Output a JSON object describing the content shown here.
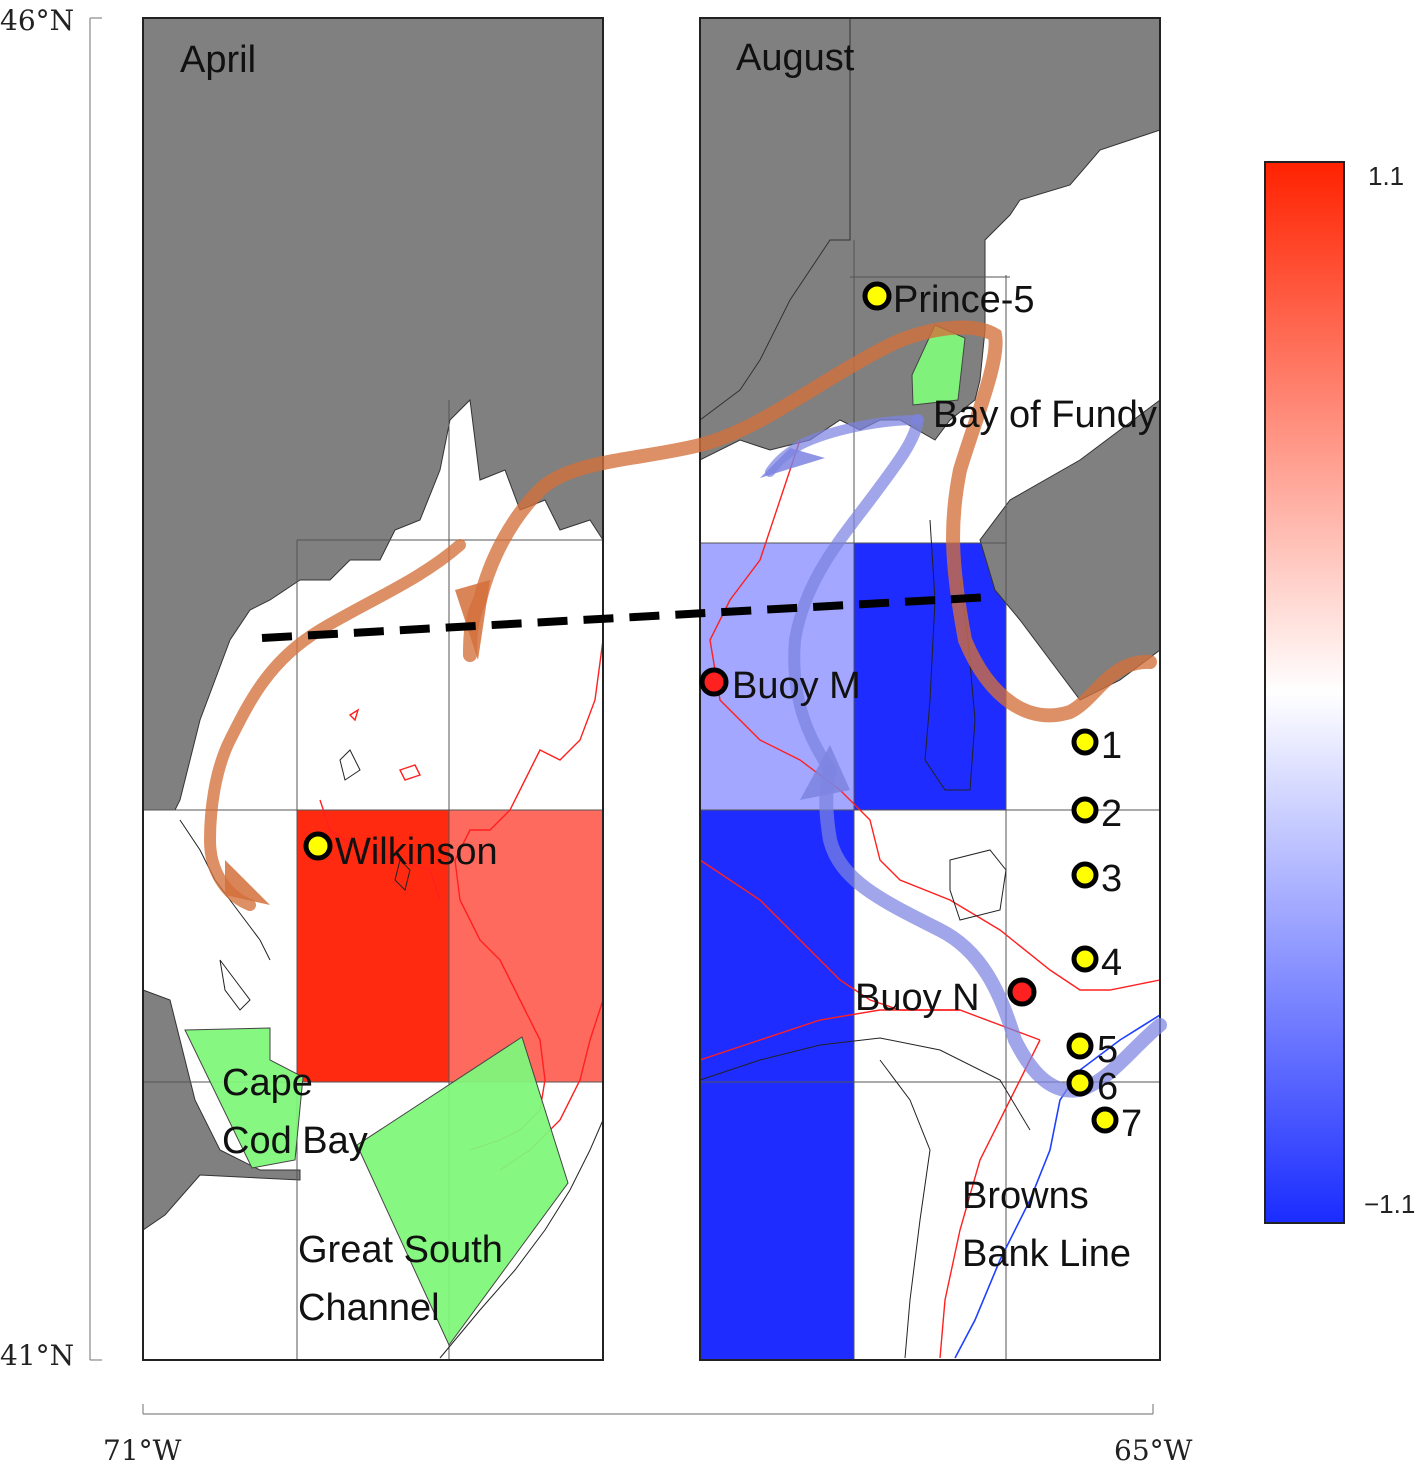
{
  "axes": {
    "lat_top": "46°N",
    "lat_bottom": "41°N",
    "lon_left": "71°W",
    "lon_right": "65°W"
  },
  "panels": {
    "left_title": "April",
    "right_title": "August"
  },
  "stations": {
    "prince5": "Prince-5",
    "buoy_m": "Buoy M",
    "buoy_n": "Buoy N",
    "wilkinson": "Wilkinson",
    "line_numbers": [
      "1",
      "2",
      "3",
      "4",
      "5",
      "6",
      "7"
    ]
  },
  "regions": {
    "bay_of_fundy": "Bay of Fundy",
    "cape_cod_bay_1": "Cape",
    "cape_cod_bay_2": "Cod Bay",
    "great_south_1": "Great South",
    "great_south_2": "Channel",
    "browns_1": "Browns",
    "browns_2": "Bank Line"
  },
  "colorbar": {
    "max_label": "1.1",
    "min_label": "−1.1",
    "high_color": "#ff2200",
    "mid_color": "#ffffff",
    "low_color": "#1a2cff"
  },
  "colors": {
    "land": "#808080",
    "high_cell": "#ff2a10",
    "med_high_cell": "#ff6a5e",
    "low_cell": "#1e2cff",
    "light_low_cell": "#a3a7ff",
    "feeding_area": "#7ff77a",
    "station_fill": "#ffff00",
    "buoy_fill": "#ff2020",
    "orange_arrow": "#d4703a",
    "blue_arrow": "#7c84e0"
  }
}
